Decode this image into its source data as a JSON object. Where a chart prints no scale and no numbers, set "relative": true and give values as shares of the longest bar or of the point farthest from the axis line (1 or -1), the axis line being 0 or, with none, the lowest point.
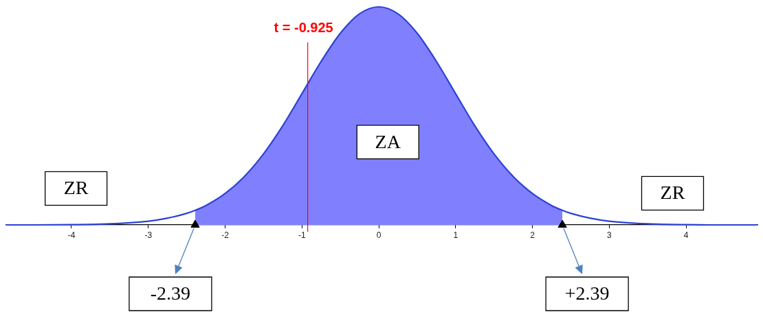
{
  "chart_data": {
    "type": "line",
    "relative": true,
    "xlim": [
      -4.85,
      4.93
    ],
    "xticks": [
      -4,
      -3,
      -2,
      -1,
      0,
      1,
      2,
      3,
      4
    ],
    "series": [
      {
        "type": "area",
        "color": "#8080ff",
        "x": [
          -2.39,
          -2.25,
          -2,
          -1.75,
          -1.5,
          -1.25,
          -1,
          -0.75,
          -0.5,
          -0.25,
          0,
          0.25,
          0.5,
          0.75,
          1,
          1.25,
          1.5,
          1.75,
          2,
          2.25,
          2.39
        ],
        "values": [
          0.067,
          0.089,
          0.144,
          0.222,
          0.326,
          0.455,
          0.602,
          0.75,
          0.879,
          0.968,
          1,
          0.968,
          0.879,
          0.75,
          0.602,
          0.455,
          0.326,
          0.222,
          0.144,
          0.089,
          0.067
        ]
      },
      {
        "color": "#2b41d4",
        "x": [
          -4.85,
          -4.5,
          -4,
          -3.5,
          -3,
          -2.75,
          -2.5,
          -2.39,
          -2.25,
          -2,
          -1.75,
          -1.5,
          -1.25,
          -1,
          -0.75,
          -0.5,
          -0.25,
          0,
          0.25,
          0.5,
          0.75,
          1,
          1.25,
          1.5,
          1.75,
          2,
          2.25,
          2.39,
          2.5,
          2.75,
          3,
          3.5,
          4,
          4.5,
          4.93
        ],
        "values": [
          0,
          0,
          0.001,
          0.005,
          0.017,
          0.031,
          0.053,
          0.067,
          0.089,
          0.144,
          0.222,
          0.326,
          0.455,
          0.602,
          0.75,
          0.879,
          0.968,
          1,
          0.968,
          0.879,
          0.75,
          0.602,
          0.455,
          0.326,
          0.222,
          0.144,
          0.089,
          0.067,
          0.053,
          0.031,
          0.017,
          0.005,
          0.001,
          0,
          0
        ]
      },
      {
        "type": "scatter",
        "color": "#000000",
        "marker": "triangle",
        "x": [
          -2.39,
          2.39
        ],
        "values": [
          0,
          0
        ]
      }
    ],
    "ref_lines": [
      {
        "axis": "x",
        "value": -0.925,
        "label": "t = -0.925",
        "color": "#ff0000"
      }
    ],
    "annotations": [
      "ZR",
      "ZA",
      "ZR",
      {
        "text": "-2.39",
        "x": -2.39,
        "y": 0
      },
      {
        "text": "+2.39",
        "x": 2.39,
        "y": 0
      }
    ]
  }
}
